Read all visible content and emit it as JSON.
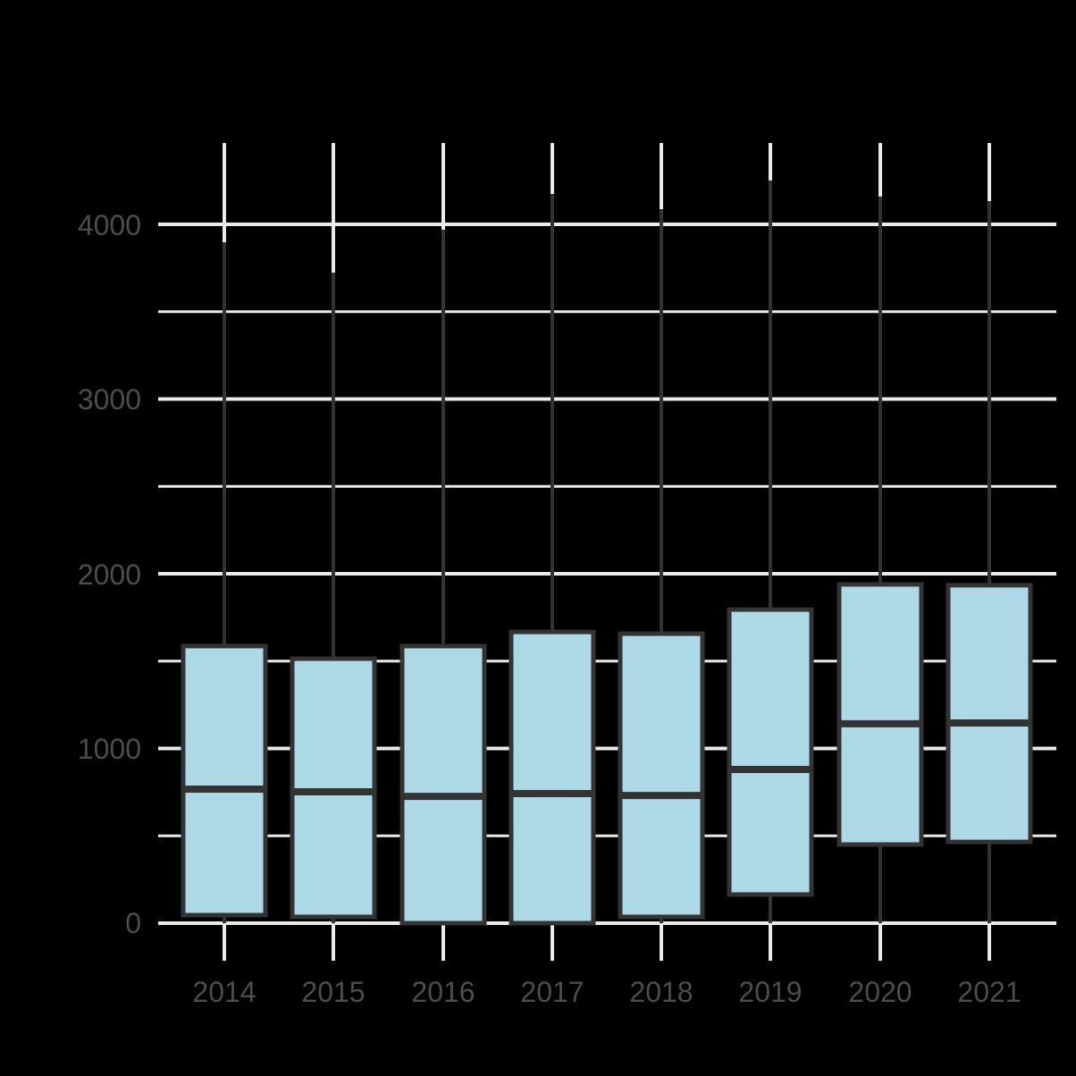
{
  "chart_data": {
    "type": "boxplot",
    "title": "",
    "xlabel": "",
    "ylabel": "",
    "categories": [
      "2014",
      "2015",
      "2016",
      "2017",
      "2018",
      "2019",
      "2020",
      "2021"
    ],
    "series": [
      {
        "name": "2014",
        "whisker_low": 0,
        "q1": 46,
        "median": 767,
        "q3": 1586,
        "whisker_high": 3898
      },
      {
        "name": "2015",
        "whisker_low": 0,
        "q1": 36,
        "median": 752,
        "q3": 1514,
        "whisker_high": 3724
      },
      {
        "name": "2016",
        "whisker_low": 0,
        "q1": 0,
        "median": 726,
        "q3": 1586,
        "whisker_high": 3969
      },
      {
        "name": "2017",
        "whisker_low": 0,
        "q1": 0,
        "median": 742,
        "q3": 1667,
        "whisker_high": 4174
      },
      {
        "name": "2018",
        "whisker_low": 0,
        "q1": 36,
        "median": 731,
        "q3": 1657,
        "whisker_high": 4087
      },
      {
        "name": "2019",
        "whisker_low": 0,
        "q1": 164,
        "median": 880,
        "q3": 1795,
        "whisker_high": 4251
      },
      {
        "name": "2020",
        "whisker_low": 0,
        "q1": 450,
        "median": 1141,
        "q3": 1939,
        "whisker_high": 4159
      },
      {
        "name": "2021",
        "whisker_low": 0,
        "q1": 465,
        "median": 1146,
        "q3": 1934,
        "whisker_high": 4133
      }
    ],
    "y_ticks": [
      0,
      1000,
      2000,
      3000,
      4000
    ],
    "y_minor_gridlines": [
      500,
      1500,
      2500,
      3500
    ],
    "ylim": [
      0,
      4470
    ],
    "grid": true,
    "legend": null
  },
  "axes": {
    "y_tick_labels": [
      "0",
      "1000",
      "2000",
      "3000",
      "4000"
    ],
    "x_tick_labels": [
      "2014",
      "2015",
      "2016",
      "2017",
      "2018",
      "2019",
      "2020",
      "2021"
    ]
  },
  "colors": {
    "background": "#000000",
    "grid": "#EBEBEB",
    "box_fill": "#ADD8E6",
    "box_outline": "#333333",
    "tick_label": "#4D4D4D"
  }
}
